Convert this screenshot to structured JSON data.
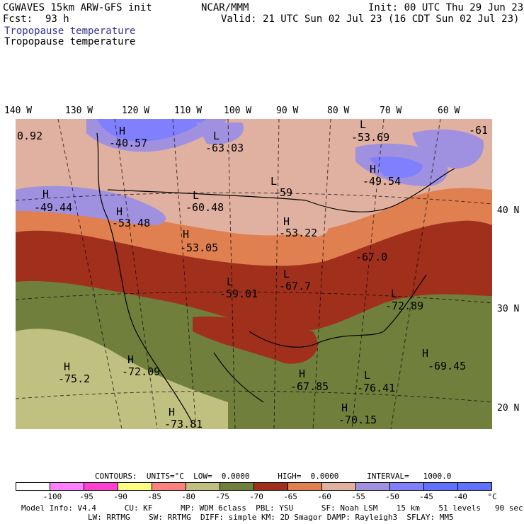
{
  "header": {
    "model": "CGWAVES 15km ARW-GFS init",
    "org": "NCAR/MMM",
    "init": "Init: 00 UTC Thu 29 Jun 23",
    "fcst_label": "Fcst:",
    "fcst_value": "93 h",
    "valid": "Valid: 21 UTC Sun 02 Jul 23 (16 CDT Sun 02 Jul 23)",
    "field_colored": "Tropopause temperature",
    "field_contour": "Tropopause temperature"
  },
  "axes": {
    "longitudes": [
      "140 W",
      "130 W",
      "120 W",
      "110 W",
      "100 W",
      "90 W",
      "80 W",
      "70 W",
      "60 W"
    ],
    "latitudes": [
      "40 N",
      "30 N",
      "20 N"
    ]
  },
  "map_labels": [
    {
      "text": "0.92"
    },
    {
      "text": "H"
    },
    {
      "text": "-40.57"
    },
    {
      "text": "L"
    },
    {
      "text": "-63.03"
    },
    {
      "text": "L"
    },
    {
      "text": "-53.69"
    },
    {
      "text": "-61"
    },
    {
      "text": "H"
    },
    {
      "text": "-49.54"
    },
    {
      "text": "L"
    },
    {
      "text": "-59"
    },
    {
      "text": "H"
    },
    {
      "text": "-49.44"
    },
    {
      "text": "L"
    },
    {
      "text": "-60.48"
    },
    {
      "text": "H"
    },
    {
      "text": "-53.48"
    },
    {
      "text": "H"
    },
    {
      "text": "-53.22"
    },
    {
      "text": "H"
    },
    {
      "text": "-53.05"
    },
    {
      "text": "-67.0"
    },
    {
      "text": "L"
    },
    {
      "text": "-59.01"
    },
    {
      "text": "L"
    },
    {
      "text": "-67.7"
    },
    {
      "text": "L"
    },
    {
      "text": "-72.89"
    },
    {
      "text": "-67.85"
    },
    {
      "text": "H"
    },
    {
      "text": "H"
    },
    {
      "text": "-69.45"
    },
    {
      "text": "H"
    },
    {
      "text": "-75.2"
    },
    {
      "text": "H"
    },
    {
      "text": "-72.09"
    },
    {
      "text": "L"
    },
    {
      "text": "-76.41"
    },
    {
      "text": "H"
    },
    {
      "text": "-73.81"
    },
    {
      "text": "H"
    },
    {
      "text": "-70.15"
    }
  ],
  "legend": {
    "contours": "CONTOURS:  UNITS=°C  LOW=  0.0000      HIGH=  0.0000      INTERVAL=   1000.0",
    "colors": [
      "#ffffff",
      "#ff80ff",
      "#ff40d0",
      "#ffff80",
      "#ff8080",
      "#c0c080",
      "#70803c",
      "#a0301c",
      "#e08050",
      "#e0b0a0",
      "#a090e0",
      "#8080ff",
      "#6070ff"
    ],
    "ticks": [
      "-100",
      "-95",
      "-90",
      "-85",
      "-80",
      "-75",
      "-70",
      "-65",
      "-60",
      "-55",
      "-50",
      "-45",
      "-40"
    ],
    "unit": "°C"
  },
  "footer": {
    "line1": "Model Info: V4.4      CU: KF      MP: WDM 6class  PBL: YSU      SF: Noah LSM    15 km    51 levels   90 sec",
    "line2": "LW: RRTMG    SW: RRTMG  DIFF: simple KM: 2D Smagor DAMP: Rayleigh3  SFLAY: MM5"
  }
}
